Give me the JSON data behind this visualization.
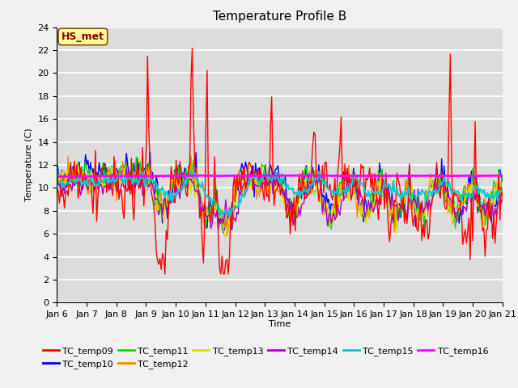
{
  "title": "Temperature Profile B",
  "xlabel": "Time",
  "ylabel": "Temperature (C)",
  "ylim": [
    0,
    24
  ],
  "annotation": "HS_met",
  "series_colors": {
    "TC_temp09": "#ff0000",
    "TC_temp10": "#0000ee",
    "TC_temp11": "#00dd00",
    "TC_temp12": "#ff8800",
    "TC_temp13": "#dddd00",
    "TC_temp14": "#aa00cc",
    "TC_temp15": "#00cccc",
    "TC_temp16": "#ff00ff"
  },
  "x_tick_labels": [
    "Jan 6",
    "Jan 7",
    "Jan 8",
    "Jan 9",
    "Jan 10",
    "Jan 11",
    "Jan 12",
    "Jan 13",
    "Jan 14",
    "Jan 15",
    "Jan 16",
    "Jan 17",
    "Jan 18",
    "Jan 19",
    "Jan 20",
    "Jan 21"
  ],
  "plot_bg": "#dcdcdc",
  "fig_bg": "#f0f0f0",
  "annotation_bg": "#ffff99",
  "annotation_border": "#8b4513",
  "annotation_text_color": "#8b0000",
  "title_fontsize": 11,
  "axis_fontsize": 8,
  "legend_fontsize": 8
}
